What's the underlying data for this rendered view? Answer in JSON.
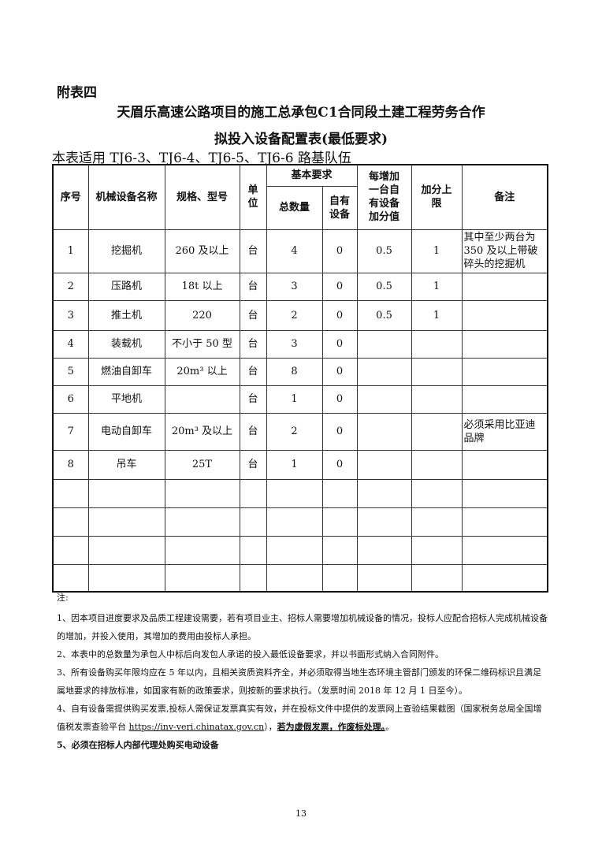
{
  "appendix_label": "附表四",
  "title_line1": "天眉乐高速公路项目的施工总承包C1合同段土建工程劳务合作",
  "title_line2": "拟投入设备配置表(最低要求)",
  "applies_to": "本表适用 TJ6-3、TJ6-4、TJ6-5、TJ6-6 路基队伍",
  "table": {
    "headers": {
      "no": "序号",
      "name": "机械设备名称",
      "spec": "规格、型号",
      "unit": "单位",
      "basic": "基本要求",
      "total": "总数量",
      "owned": "自有设备",
      "bonus": "每增加一台自有设备加分值",
      "cap": "加分上限",
      "remark": "备注"
    },
    "rows": [
      {
        "no": "1",
        "name": "挖掘机",
        "spec": "260 及以上",
        "unit": "台",
        "total": "4",
        "owned": "0",
        "bonus": "0.5",
        "cap": "1",
        "remark": "其中至少两台为350 及以上带破碎头的挖掘机"
      },
      {
        "no": "2",
        "name": "压路机",
        "spec": "18t 以上",
        "unit": "台",
        "total": "3",
        "owned": "0",
        "bonus": "0.5",
        "cap": "1",
        "remark": ""
      },
      {
        "no": "3",
        "name": "推土机",
        "spec": "220",
        "unit": "台",
        "total": "2",
        "owned": "0",
        "bonus": "0.5",
        "cap": "1",
        "remark": ""
      },
      {
        "no": "4",
        "name": "装载机",
        "spec": "不小于 50 型",
        "unit": "台",
        "total": "3",
        "owned": "0",
        "bonus": "",
        "cap": "",
        "remark": ""
      },
      {
        "no": "5",
        "name": "燃油自卸车",
        "spec": "20m³ 以上",
        "unit": "台",
        "total": "8",
        "owned": "0",
        "bonus": "",
        "cap": "",
        "remark": ""
      },
      {
        "no": "6",
        "name": "平地机",
        "spec": "",
        "unit": "台",
        "total": "1",
        "owned": "0",
        "bonus": "",
        "cap": "",
        "remark": ""
      },
      {
        "no": "7",
        "name": "电动自卸车",
        "spec": "20m³ 及以上",
        "unit": "台",
        "total": "2",
        "owned": "0",
        "bonus": "",
        "cap": "",
        "remark": "必须采用比亚迪品牌"
      },
      {
        "no": "8",
        "name": "吊车",
        "spec": "25T",
        "unit": "台",
        "total": "1",
        "owned": "0",
        "bonus": "",
        "cap": "",
        "remark": ""
      }
    ]
  },
  "notes": {
    "heading": "注:",
    "n1": "1、因本项目进度要求及品质工程建设需要，若有项目业主、招标人需要增加机械设备的情况，投标人应配合招标人完成机械设备的增加，并投入使用，其增加的费用由投标人承担。",
    "n2": "2、本表中的总数量为承包人中标后向发包人承诺的投入最低设备要求，并以书面形式纳入合同附件。",
    "n3": "3、所有设备购买年限均应在 5 年以内，且相关资质资料齐全，并必须取得当地生态环境主管部门颁发的环保二维码标识且满足属地要求的排放标准，如国家有新的政策要求，则按新的要求执行。（发票时间 2018 年 12 月 1 日至今）。",
    "n4_a": "4、自有设备需提供购买发票,投标人需保证发票真实有效，并在投标文件中提供的发票网上查验结果截图（国家税务总局全国增值税发票查验平台 ",
    "n4_link": "https://inv-veri.chinatax.gov.cn",
    "n4_b": "），",
    "n4_bold": "若为虚假发票，作废标处理。",
    "n4_c": "。",
    "n5": "5、必须在招标人内部代理处购买电动设备"
  },
  "page_number": "13"
}
